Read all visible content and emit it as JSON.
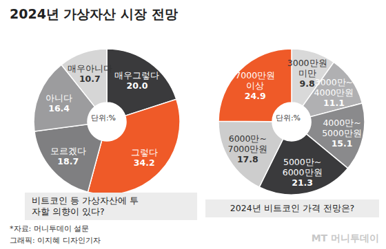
{
  "title": "2024년 가상자산 시장 전망",
  "source": "*자료: 머니투데이 설문",
  "credit": "그래픽: 이지혜 디자인기자",
  "watermark": "MT 머니투데이",
  "chart_data": [
    {
      "type": "pie",
      "title": "비트코인 등 가상자산에 투자할 의향이 있다?",
      "center_label": "단위:%",
      "categories": [
        "매우그렇다",
        "그렇다",
        "모르겠다",
        "아니다",
        "매우아니다"
      ],
      "values": [
        20.0,
        34.2,
        18.7,
        16.4,
        10.7
      ],
      "value_labels": [
        "20.0",
        "34.2",
        "18.7",
        "16.4",
        "10.7"
      ],
      "colors": [
        "#3a3a3c",
        "#ef5a28",
        "#7f7f81",
        "#9c9c9e",
        "#d6d6d6"
      ],
      "data_labels": true
    },
    {
      "type": "pie",
      "title": "2024년 비트코인 가격 전망은?",
      "center_label": "단위:%",
      "categories": [
        "3000만원 미만",
        "3000만~4000만원",
        "4000만~5000만원",
        "5000만~6000만원",
        "6000만~7000만원",
        "7000만원 이상"
      ],
      "values": [
        9.8,
        11.1,
        15.1,
        21.3,
        17.8,
        24.9
      ],
      "colors": [
        "#d9d9d9",
        "#b0b0b2",
        "#8a8a8c",
        "#3a3a3c",
        "#cdcdcd",
        "#ef5a28"
      ],
      "data_labels": true
    }
  ]
}
